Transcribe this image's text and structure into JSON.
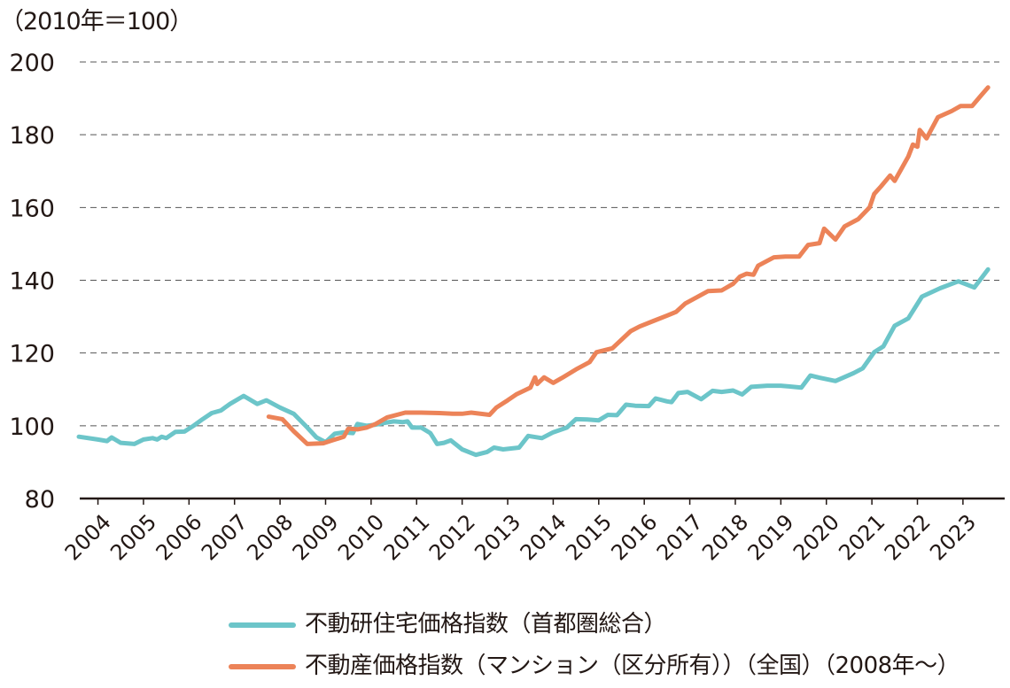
{
  "chart_data": {
    "type": "line",
    "unit_label": "（2010年＝100）",
    "ylim": [
      80,
      200
    ],
    "yticks": [
      80,
      100,
      120,
      140,
      160,
      180,
      200
    ],
    "xlim": [
      2003.6,
      2023.8
    ],
    "xticks": [
      "2004",
      "2005",
      "2006",
      "2007",
      "2008",
      "2009",
      "2010",
      "2011",
      "2012",
      "2013",
      "2014",
      "2015",
      "2016",
      "2017",
      "2018",
      "2019",
      "2020",
      "2021",
      "2022",
      "2023"
    ],
    "grid": "horizontal dashed",
    "legend_position": "bottom",
    "series": [
      {
        "name": "不動研住宅価格指数（首都圏総合）",
        "color": "#6cc5c9",
        "points": [
          [
            2003.58,
            97.0
          ],
          [
            2004.0,
            96.2
          ],
          [
            2004.2,
            95.8
          ],
          [
            2004.3,
            96.8
          ],
          [
            2004.5,
            95.3
          ],
          [
            2004.8,
            95.0
          ],
          [
            2005.0,
            96.2
          ],
          [
            2005.2,
            96.6
          ],
          [
            2005.3,
            96.2
          ],
          [
            2005.4,
            97.0
          ],
          [
            2005.5,
            96.6
          ],
          [
            2005.7,
            98.3
          ],
          [
            2005.9,
            98.4
          ],
          [
            2006.1,
            100.0
          ],
          [
            2006.3,
            101.8
          ],
          [
            2006.5,
            103.5
          ],
          [
            2006.7,
            104.2
          ],
          [
            2006.9,
            106.0
          ],
          [
            2007.2,
            108.2
          ],
          [
            2007.5,
            106.0
          ],
          [
            2007.7,
            107.0
          ],
          [
            2008.0,
            105.0
          ],
          [
            2008.3,
            103.3
          ],
          [
            2008.6,
            99.5
          ],
          [
            2008.8,
            96.8
          ],
          [
            2009.0,
            95.5
          ],
          [
            2009.2,
            97.8
          ],
          [
            2009.4,
            98.2
          ],
          [
            2009.6,
            98.0
          ],
          [
            2009.7,
            100.5
          ],
          [
            2009.9,
            100.0
          ],
          [
            2010.1,
            100.3
          ],
          [
            2010.3,
            100.8
          ],
          [
            2010.5,
            101.2
          ],
          [
            2010.7,
            101.0
          ],
          [
            2010.8,
            101.2
          ],
          [
            2010.9,
            99.5
          ],
          [
            2011.1,
            99.5
          ],
          [
            2011.3,
            98.0
          ],
          [
            2011.45,
            95.0
          ],
          [
            2011.6,
            95.3
          ],
          [
            2011.75,
            96.0
          ],
          [
            2012.0,
            93.5
          ],
          [
            2012.3,
            92.0
          ],
          [
            2012.55,
            92.8
          ],
          [
            2012.7,
            94.0
          ],
          [
            2012.9,
            93.5
          ],
          [
            2013.25,
            94.0
          ],
          [
            2013.45,
            97.2
          ],
          [
            2013.75,
            96.6
          ],
          [
            2014.0,
            98.2
          ],
          [
            2014.3,
            99.5
          ],
          [
            2014.5,
            101.8
          ],
          [
            2014.75,
            101.7
          ],
          [
            2015.0,
            101.5
          ],
          [
            2015.2,
            103.0
          ],
          [
            2015.4,
            102.9
          ],
          [
            2015.6,
            105.8
          ],
          [
            2015.8,
            105.5
          ],
          [
            2016.1,
            105.4
          ],
          [
            2016.25,
            107.5
          ],
          [
            2016.5,
            106.7
          ],
          [
            2016.6,
            106.5
          ],
          [
            2016.75,
            109.0
          ],
          [
            2016.95,
            109.3
          ],
          [
            2017.25,
            107.3
          ],
          [
            2017.5,
            109.6
          ],
          [
            2017.7,
            109.3
          ],
          [
            2017.95,
            109.7
          ],
          [
            2018.15,
            108.6
          ],
          [
            2018.35,
            110.7
          ],
          [
            2018.7,
            111.0
          ],
          [
            2019.0,
            111.0
          ],
          [
            2019.45,
            110.5
          ],
          [
            2019.65,
            113.8
          ],
          [
            2019.85,
            113.2
          ],
          [
            2020.2,
            112.3
          ],
          [
            2020.6,
            114.5
          ],
          [
            2020.8,
            115.8
          ],
          [
            2021.05,
            120.2
          ],
          [
            2021.25,
            121.8
          ],
          [
            2021.5,
            127.5
          ],
          [
            2021.8,
            129.5
          ],
          [
            2022.1,
            135.5
          ],
          [
            2022.5,
            137.8
          ],
          [
            2022.9,
            139.7
          ],
          [
            2023.25,
            138.0
          ],
          [
            2023.55,
            143.0
          ]
        ]
      },
      {
        "name": "不動産価格指数（マンション（区分所有））（全国）（2008年〜）",
        "color": "#ec8358",
        "points": [
          [
            2007.75,
            102.5
          ],
          [
            2008.05,
            101.8
          ],
          [
            2008.3,
            98.5
          ],
          [
            2008.6,
            95.0
          ],
          [
            2008.95,
            95.2
          ],
          [
            2009.15,
            96.0
          ],
          [
            2009.4,
            97.0
          ],
          [
            2009.5,
            99.2
          ],
          [
            2009.7,
            99.0
          ],
          [
            2009.9,
            99.5
          ],
          [
            2010.1,
            100.5
          ],
          [
            2010.35,
            102.3
          ],
          [
            2010.75,
            103.6
          ],
          [
            2011.1,
            103.6
          ],
          [
            2011.5,
            103.5
          ],
          [
            2011.8,
            103.3
          ],
          [
            2012.0,
            103.3
          ],
          [
            2012.2,
            103.6
          ],
          [
            2012.6,
            103.0
          ],
          [
            2012.75,
            105.0
          ],
          [
            2013.0,
            107.0
          ],
          [
            2013.2,
            108.7
          ],
          [
            2013.5,
            110.5
          ],
          [
            2013.6,
            113.3
          ],
          [
            2013.65,
            111.5
          ],
          [
            2013.8,
            113.3
          ],
          [
            2014.0,
            111.8
          ],
          [
            2014.2,
            113.2
          ],
          [
            2014.5,
            115.5
          ],
          [
            2014.8,
            117.5
          ],
          [
            2014.95,
            120.2
          ],
          [
            2015.3,
            121.3
          ],
          [
            2015.7,
            126.0
          ],
          [
            2015.9,
            127.3
          ],
          [
            2016.2,
            128.8
          ],
          [
            2016.5,
            130.3
          ],
          [
            2016.7,
            131.3
          ],
          [
            2016.9,
            133.6
          ],
          [
            2017.15,
            135.3
          ],
          [
            2017.4,
            137.0
          ],
          [
            2017.7,
            137.2
          ],
          [
            2017.95,
            139.0
          ],
          [
            2018.1,
            141.0
          ],
          [
            2018.25,
            141.8
          ],
          [
            2018.4,
            141.5
          ],
          [
            2018.5,
            144.0
          ],
          [
            2018.85,
            146.3
          ],
          [
            2019.1,
            146.5
          ],
          [
            2019.4,
            146.5
          ],
          [
            2019.6,
            149.7
          ],
          [
            2019.85,
            150.2
          ],
          [
            2019.95,
            154.2
          ],
          [
            2020.2,
            151.2
          ],
          [
            2020.4,
            154.8
          ],
          [
            2020.7,
            156.8
          ],
          [
            2020.95,
            160.0
          ],
          [
            2021.05,
            163.7
          ],
          [
            2021.2,
            165.8
          ],
          [
            2021.4,
            168.8
          ],
          [
            2021.5,
            167.3
          ],
          [
            2021.8,
            174.0
          ],
          [
            2021.9,
            177.3
          ],
          [
            2022.0,
            176.7
          ],
          [
            2022.05,
            181.3
          ],
          [
            2022.2,
            179.0
          ],
          [
            2022.45,
            184.8
          ],
          [
            2022.75,
            186.5
          ],
          [
            2022.95,
            187.9
          ],
          [
            2023.2,
            187.9
          ],
          [
            2023.4,
            190.8
          ],
          [
            2023.55,
            193.0
          ]
        ]
      }
    ]
  }
}
